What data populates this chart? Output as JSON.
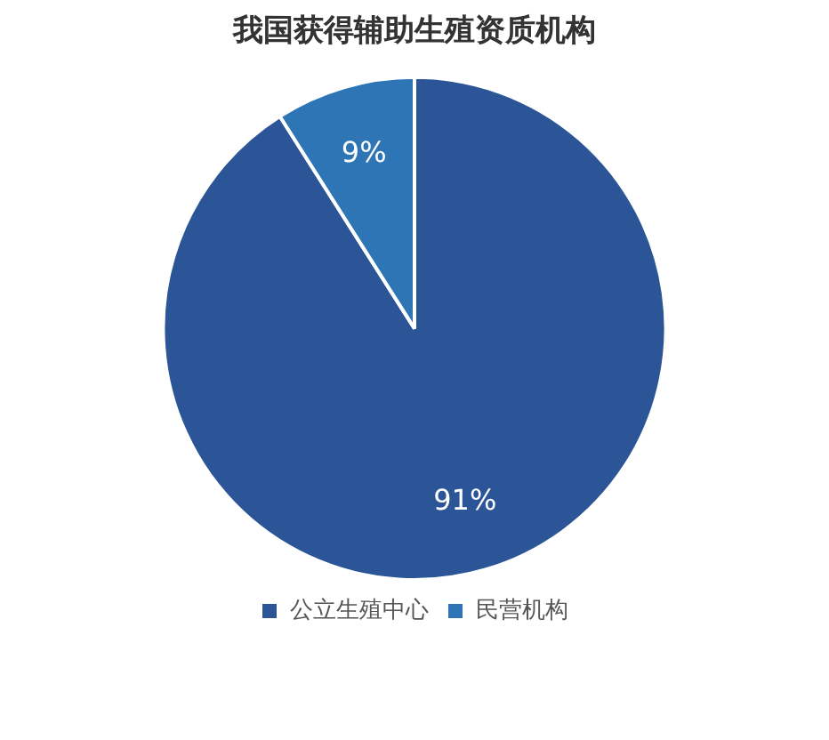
{
  "chart_data": {
    "type": "pie",
    "title": "我国获得辅助生殖资质机构",
    "categories": [
      "公立生殖中心",
      "民营机构"
    ],
    "values": [
      91,
      9
    ],
    "colors": [
      "#2b5597",
      "#2e75b6"
    ],
    "value_labels": [
      "91%",
      "9%"
    ],
    "legend": "bottom"
  }
}
